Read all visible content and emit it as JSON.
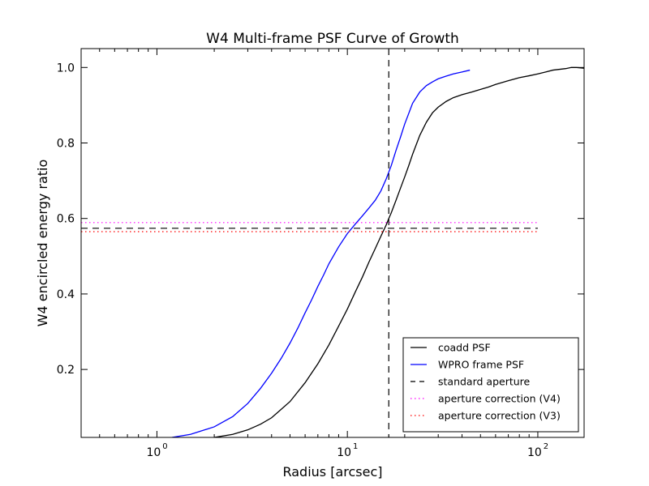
{
  "chart_data": {
    "type": "line",
    "title": "W4 Multi-frame PSF Curve of Growth",
    "xlabel": "Radius [arcsec]",
    "ylabel": "W4 encircled energy ratio",
    "xscale": "log",
    "xlim": [
      0.4,
      175
    ],
    "ylim": [
      0.02,
      1.05
    ],
    "xticks": [
      {
        "value": 1,
        "base": "10",
        "exp": "0"
      },
      {
        "value": 10,
        "base": "10",
        "exp": "1"
      },
      {
        "value": 100,
        "base": "10",
        "exp": "2"
      }
    ],
    "yticks": [
      {
        "value": 0.2,
        "label": "0.2"
      },
      {
        "value": 0.4,
        "label": "0.4"
      },
      {
        "value": 0.6,
        "label": "0.6"
      },
      {
        "value": 0.8,
        "label": "0.8"
      },
      {
        "value": 1.0,
        "label": "1.0"
      }
    ],
    "legend_position": "lower-right",
    "series": [
      {
        "name": "coadd PSF",
        "color": "#000000",
        "style": "solid",
        "x": [
          2.0,
          2.5,
          3.0,
          3.5,
          4.0,
          5.0,
          6.0,
          7.0,
          8.0,
          9.0,
          10.0,
          11.0,
          12.0,
          13.0,
          14.0,
          15.0,
          16.0,
          16.5,
          17.0,
          18.0,
          19.0,
          20.0,
          21.0,
          22.0,
          24.0,
          26.0,
          28.0,
          30.0,
          33.0,
          36.0,
          40.0,
          45.0,
          50.0,
          55.0,
          60.0,
          70.0,
          80.0,
          90.0,
          100.0,
          110.0,
          120.0,
          140.0,
          150.0,
          160.0,
          175.0
        ],
        "y": [
          0.02,
          0.028,
          0.04,
          0.055,
          0.072,
          0.115,
          0.165,
          0.215,
          0.265,
          0.315,
          0.36,
          0.405,
          0.445,
          0.485,
          0.52,
          0.553,
          0.583,
          0.6,
          0.615,
          0.648,
          0.68,
          0.71,
          0.74,
          0.77,
          0.82,
          0.855,
          0.88,
          0.895,
          0.91,
          0.92,
          0.928,
          0.935,
          0.942,
          0.948,
          0.955,
          0.965,
          0.973,
          0.978,
          0.983,
          0.988,
          0.993,
          0.997,
          1.0,
          1.0,
          0.998
        ]
      },
      {
        "name": "WPRO frame PSF",
        "color": "#0000ff",
        "style": "solid",
        "x": [
          1.2,
          1.5,
          2.0,
          2.5,
          3.0,
          3.5,
          4.0,
          4.5,
          5.0,
          5.5,
          6.0,
          6.5,
          7.0,
          7.5,
          8.0,
          9.0,
          10.0,
          11.0,
          12.0,
          13.0,
          14.0,
          15.0,
          16.0,
          17.0,
          18.0,
          19.0,
          20.0,
          22.0,
          24.0,
          26.0,
          28.0,
          30.0,
          33.0,
          36.0,
          40.0,
          44.0
        ],
        "y": [
          0.02,
          0.028,
          0.048,
          0.075,
          0.11,
          0.15,
          0.19,
          0.23,
          0.27,
          0.31,
          0.35,
          0.385,
          0.42,
          0.45,
          0.48,
          0.525,
          0.56,
          0.585,
          0.607,
          0.628,
          0.648,
          0.673,
          0.705,
          0.74,
          0.78,
          0.815,
          0.85,
          0.905,
          0.935,
          0.952,
          0.962,
          0.97,
          0.977,
          0.983,
          0.988,
          0.993
        ]
      },
      {
        "name": "standard aperture",
        "color": "#000000",
        "style": "dashed",
        "horizontal": {
          "y": 0.574,
          "x": [
            0.4,
            100
          ]
        },
        "vertical": {
          "x": 16.5
        }
      },
      {
        "name": "aperture correction (V4)",
        "color": "#ff00ff",
        "style": "dotted",
        "horizontal": {
          "y": 0.589,
          "x": [
            0.4,
            100
          ]
        }
      },
      {
        "name": "aperture correction (V3)",
        "color": "#ff0000",
        "style": "dotted",
        "horizontal": {
          "y": 0.565,
          "x": [
            0.4,
            100
          ]
        }
      }
    ]
  }
}
